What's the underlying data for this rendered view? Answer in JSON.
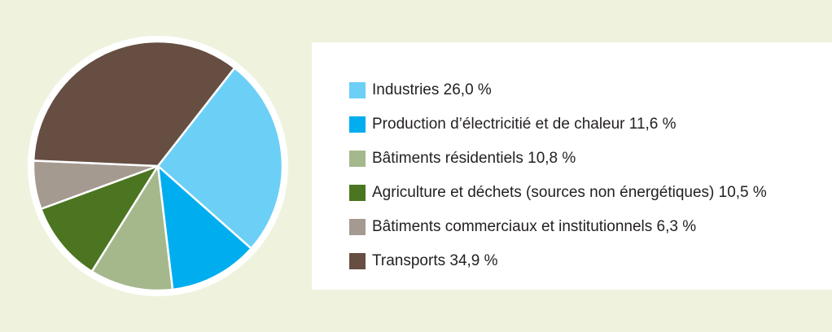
{
  "chart_data": {
    "type": "pie",
    "start_angle_deg": -52,
    "direction": "clockwise",
    "slices": [
      {
        "label": "Industries",
        "value": 26.0,
        "value_text": "26,0 %",
        "color": "#6ccff6"
      },
      {
        "label": "Production d’électricitié et de chaleur",
        "value": 11.6,
        "value_text": "11,6 %",
        "color": "#00aeef"
      },
      {
        "label": "Bâtiments résidentiels",
        "value": 10.8,
        "value_text": "10,8 %",
        "color": "#a5b88c"
      },
      {
        "label": "Agriculture et déchets (sources non énergétiques)",
        "value": 10.5,
        "value_text": "10,5 %",
        "color": "#4b7520"
      },
      {
        "label": "Bâtiments commerciaux et institutionnels",
        "value": 6.3,
        "value_text": "6,3 %",
        "color": "#a59a90"
      },
      {
        "label": "Transports",
        "value": 34.9,
        "value_text": "34,9 %",
        "color": "#664e42"
      }
    ],
    "legend_position": "right"
  },
  "legend": {
    "items": [
      {
        "text": "Industries 26,0 %",
        "color": "#6ccff6"
      },
      {
        "text": "Production d’électricitié et de chaleur 11,6 %",
        "color": "#00aeef"
      },
      {
        "text": "Bâtiments résidentiels 10,8 %",
        "color": "#a5b88c"
      },
      {
        "text": "Agriculture et déchets (sources non énergétiques) 10,5 %",
        "color": "#4b7520"
      },
      {
        "text": "Bâtiments commerciaux et institutionnels 6,3 %",
        "color": "#a59a90"
      },
      {
        "text": "Transports 34,9 %",
        "color": "#664e42"
      }
    ]
  }
}
